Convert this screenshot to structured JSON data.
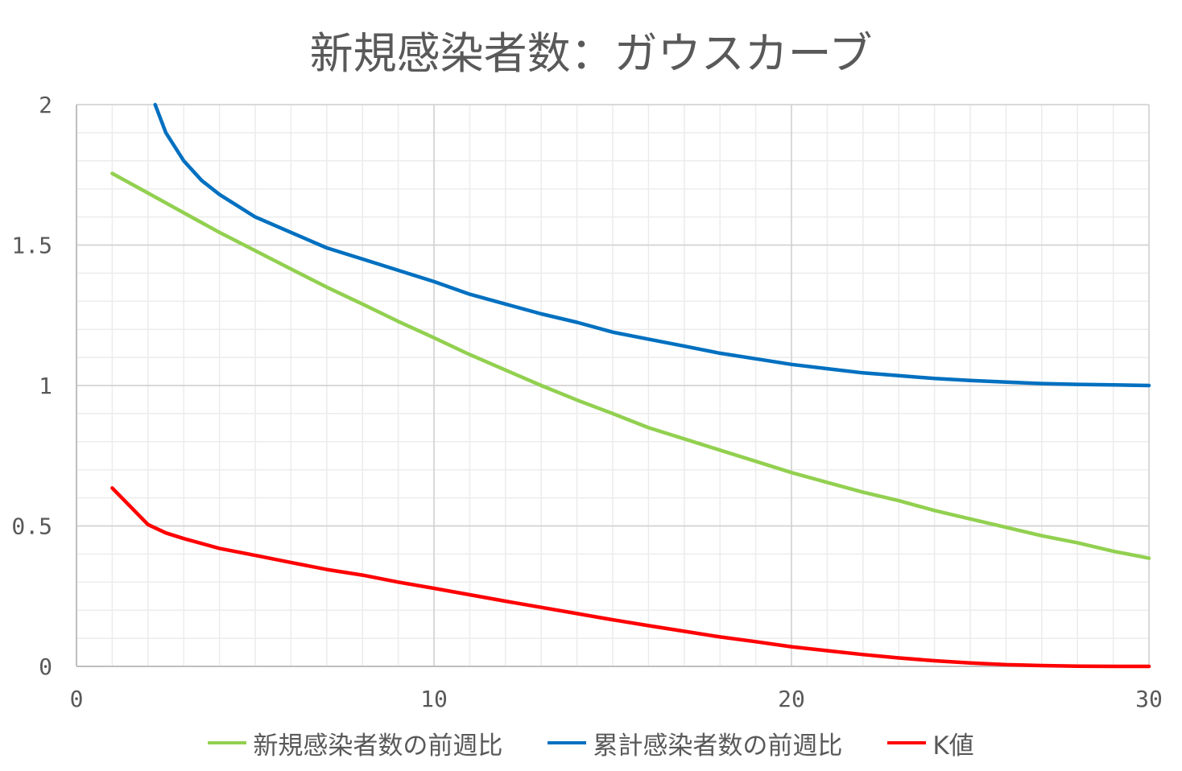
{
  "chart_data": {
    "type": "line",
    "title": "新規感染者数：ガウスカーブ",
    "xlabel": "",
    "ylabel": "",
    "xlim": [
      0,
      30
    ],
    "ylim": [
      0,
      2
    ],
    "x_ticks": [
      "0",
      "10",
      "20",
      "30"
    ],
    "y_ticks": [
      "0",
      "0.5",
      "1",
      "1.5",
      "2"
    ],
    "grid": {
      "major": true,
      "minor": true
    },
    "legend_position": "bottom",
    "series": [
      {
        "name": "新規感染者数の前週比",
        "color": "#92d050",
        "x": [
          1,
          2,
          3,
          4,
          5,
          6,
          7,
          8,
          9,
          10,
          11,
          12,
          13,
          14,
          15,
          16,
          17,
          18,
          19,
          20,
          21,
          22,
          23,
          24,
          25,
          26,
          27,
          28,
          29,
          30
        ],
        "y": [
          1.755,
          1.685,
          1.615,
          1.545,
          1.48,
          1.415,
          1.35,
          1.29,
          1.228,
          1.17,
          1.11,
          1.055,
          1.0,
          0.948,
          0.9,
          0.85,
          0.81,
          0.77,
          0.73,
          0.69,
          0.655,
          0.62,
          0.59,
          0.555,
          0.525,
          0.495,
          0.465,
          0.44,
          0.41,
          0.385
        ]
      },
      {
        "name": "累計感染者数の前週比",
        "color": "#0070c0",
        "x": [
          2.2,
          2.5,
          3,
          3.5,
          4,
          5,
          6,
          7,
          8,
          9,
          10,
          11,
          12,
          13,
          14,
          15,
          16,
          17,
          18,
          19,
          20,
          21,
          22,
          23,
          24,
          25,
          26,
          27,
          28,
          29,
          30
        ],
        "y": [
          2.0,
          1.9,
          1.8,
          1.73,
          1.68,
          1.6,
          1.545,
          1.49,
          1.45,
          1.41,
          1.37,
          1.325,
          1.29,
          1.255,
          1.225,
          1.19,
          1.165,
          1.14,
          1.115,
          1.095,
          1.075,
          1.06,
          1.045,
          1.035,
          1.025,
          1.018,
          1.012,
          1.007,
          1.004,
          1.002,
          1.0
        ]
      },
      {
        "name": "K値",
        "color": "#ff0000",
        "x": [
          1,
          1.5,
          2,
          2.5,
          3,
          4,
          5,
          6,
          7,
          8,
          9,
          10,
          11,
          12,
          13,
          14,
          15,
          16,
          17,
          18,
          19,
          20,
          21,
          22,
          23,
          24,
          25,
          26,
          27,
          28,
          29,
          30
        ],
        "y": [
          0.635,
          0.57,
          0.505,
          0.475,
          0.455,
          0.42,
          0.395,
          0.37,
          0.345,
          0.325,
          0.3,
          0.278,
          0.255,
          0.232,
          0.21,
          0.188,
          0.166,
          0.145,
          0.125,
          0.105,
          0.088,
          0.07,
          0.056,
          0.042,
          0.03,
          0.02,
          0.012,
          0.006,
          0.003,
          0.001,
          0.0,
          0.0
        ]
      }
    ]
  }
}
